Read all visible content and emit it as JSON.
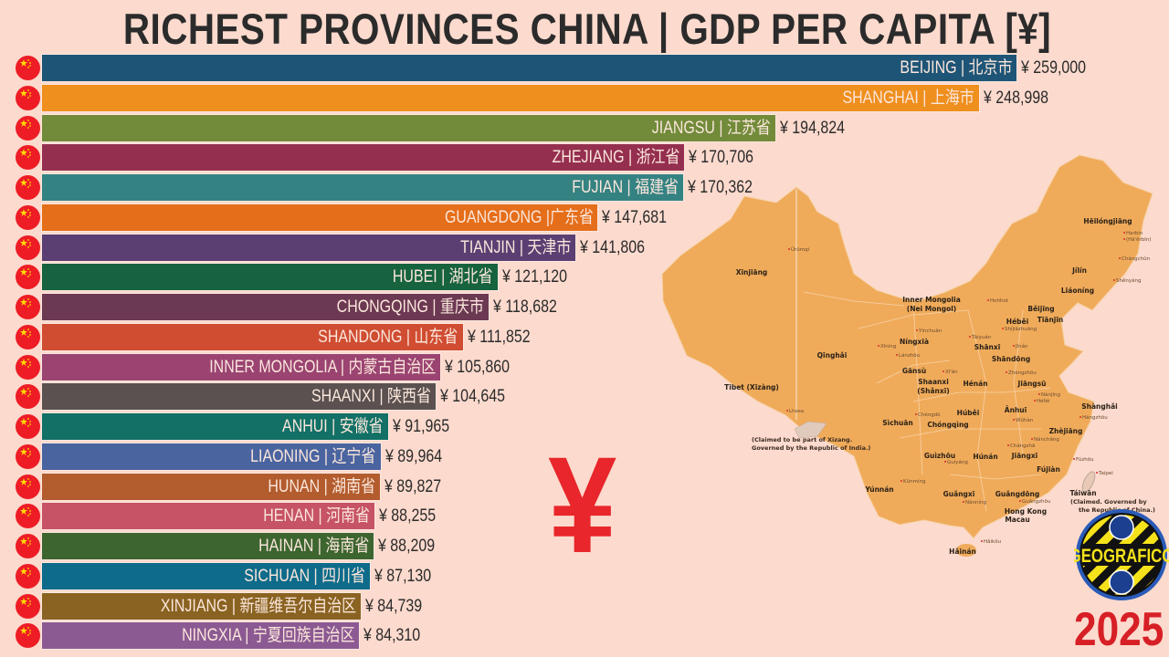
{
  "title": "RICHEST PROVINCES CHINA | GDP PER CAPITA [¥]",
  "year": "2025",
  "big_symbol": "¥",
  "logo_text": "GEOGRAFICO",
  "flag_icon": "china-flag-icon",
  "colors": {
    "background": "#fcdacd",
    "map_fill": "#f0ab5a",
    "accent_red": "#e8262b"
  },
  "chart_data": {
    "type": "bar",
    "orientation": "horizontal",
    "title": "RICHEST PROVINCES CHINA | GDP PER CAPITA [¥]",
    "currency": "¥",
    "xlim": [
      0,
      259000
    ],
    "grid": false,
    "categories": [
      "BEIJING | 北京市",
      "SHANGHAI | 上海市",
      "JIANGSU | 江苏省",
      "ZHEJIANG | 浙江省",
      "FUJIAN | 福建省",
      "GUANGDONG |广东省",
      "TIANJIN | 天津市",
      "HUBEI | 湖北省",
      "CHONGQING | 重庆市",
      "SHANDONG | 山东省",
      "INNER MONGOLIA | 内蒙古自治区",
      "SHAANXI | 陕西省",
      "ANHUI | 安徽省",
      "LIAONING | 辽宁省",
      "HUNAN | 湖南省",
      "HENAN | 河南省",
      "HAINAN | 海南省",
      "SICHUAN | 四川省",
      "XINJIANG | 新疆维吾尔自治区",
      "NINGXIA | 宁夏回族自治区"
    ],
    "values": [
      259000,
      248998,
      194824,
      170706,
      170362,
      147681,
      141806,
      121120,
      118682,
      111852,
      105860,
      104645,
      91965,
      89964,
      89827,
      88255,
      88209,
      87130,
      84739,
      84310
    ],
    "value_labels": [
      "¥ 259,000",
      "¥ 248,998",
      "¥ 194,824",
      "¥ 170,706",
      "¥ 170,362",
      "¥ 147,681",
      "¥ 141,806",
      "¥ 121,120",
      "¥ 118,682",
      "¥ 111,852",
      "¥ 105,860",
      "¥ 104,645",
      "¥ 91,965",
      "¥ 89,964",
      "¥ 89,827",
      "¥ 88,255",
      "¥ 88,209",
      "¥ 87,130",
      "¥ 84,739",
      "¥ 84,310"
    ],
    "colors": [
      "#1e5577",
      "#ef8f1e",
      "#728b3a",
      "#952f50",
      "#358282",
      "#e56e1a",
      "#5b3f73",
      "#17623f",
      "#6c3953",
      "#d04d32",
      "#9b4472",
      "#5a5150",
      "#127066",
      "#4a64a0",
      "#b35c2e",
      "#c65366",
      "#3d6530",
      "#0e6b8a",
      "#8a6322",
      "#8c5a93"
    ]
  },
  "map": {
    "provinces": [
      "Xīnjiāng",
      "Inner Mongolia",
      "(Nei Mongol)",
      "Hēilóngjiāng",
      "Jílín",
      "Liáoníng",
      "Běijīng",
      "Tiānjīn",
      "Héběi",
      "Níngxià",
      "Shānxī",
      "Shāndōng",
      "Qīnghǎi",
      "Gānsù",
      "Shaanxi",
      "(Shǎnxī)",
      "Hénán",
      "Jiāngsū",
      "Tibet (Xīzàng)",
      "Shànghǎi",
      "Ānhuī",
      "Húběi",
      "Sìchuān",
      "Chóngqìng",
      "Zhèjiāng",
      "Jiāngxī",
      "Guìzhōu",
      "Húnán",
      "Fújiàn",
      "Yúnnán",
      "Guǎngxī",
      "Guǎngdōng",
      "Táiwān",
      "Hǎinán",
      "Hong Kong",
      "Macau"
    ],
    "cities": [
      "Ürümqi",
      "Harbin",
      "(Hā'ěrbīn)",
      "Chángchūn",
      "Shěnyáng",
      "Hohhot",
      "Yínchuān",
      "Tàiyuán",
      "Shíjiāzhuāng",
      "Jǐnán",
      "Xīníng",
      "Lánzhōu",
      "Xī'ān",
      "Zhèngzhōu",
      "Nánjīng",
      "Héféi",
      "Lhasa",
      "Chéngdū",
      "Wǔhàn",
      "Hángzhōu",
      "Nánchāng",
      "Chángshā",
      "Guìyáng",
      "Fúzhōu",
      "Kūnmíng",
      "Nánníng",
      "Guǎngzhōu",
      "Taipei",
      "Hǎikǒu"
    ],
    "notes": [
      "(Claimed to be part of Xizang.",
      "Governed by the Republic of India.)",
      "(Claimed. Governed by",
      "the Republic of China.)"
    ]
  }
}
